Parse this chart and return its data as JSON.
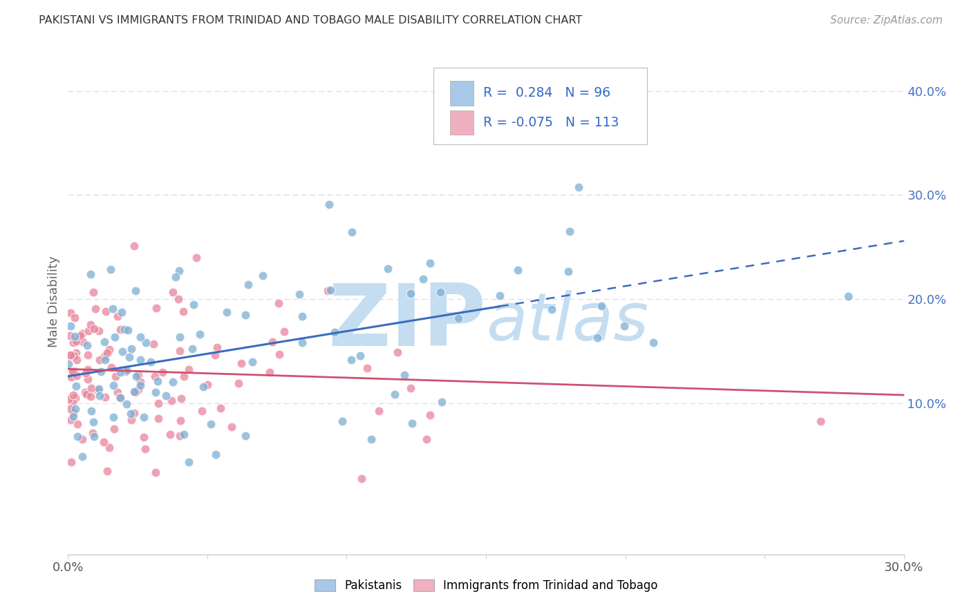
{
  "title": "PAKISTANI VS IMMIGRANTS FROM TRINIDAD AND TOBAGO MALE DISABILITY CORRELATION CHART",
  "source": "Source: ZipAtlas.com",
  "ylabel": "Male Disability",
  "x_min": 0.0,
  "x_max": 0.3,
  "y_min": -0.045,
  "y_max": 0.44,
  "y_ticks_right": [
    0.1,
    0.2,
    0.3,
    0.4
  ],
  "y_tick_labels_right": [
    "10.0%",
    "20.0%",
    "30.0%",
    "40.0%"
  ],
  "pakistani_R": 0.284,
  "pakistani_N": 96,
  "tt_R": -0.075,
  "tt_N": 113,
  "blue_dot_color": "#7bafd4",
  "pink_dot_color": "#e8849a",
  "blue_fill_legend": "#a8c8e8",
  "pink_fill_legend": "#f0b0c0",
  "trend_blue": "#3a6cbf",
  "trend_pink": "#d05070",
  "watermark_color": "#c5ddf0",
  "background_color": "#ffffff",
  "legend_label_blue": "Pakistanis",
  "legend_label_pink": "Immigrants from Trinidad and Tobago",
  "grid_color": "#dddddd",
  "spine_color": "#cccccc",
  "tick_color": "#4472c4",
  "ylabel_color": "#666666",
  "title_color": "#333333",
  "source_color": "#999999",
  "pak_trend_start_y": 0.126,
  "pak_trend_end_y": 0.256,
  "pak_trend_x0": 0.0,
  "pak_trend_x1": 0.3,
  "tt_trend_start_y": 0.133,
  "tt_trend_end_y": 0.108,
  "tt_trend_x0": 0.0,
  "tt_trend_x1": 0.3
}
